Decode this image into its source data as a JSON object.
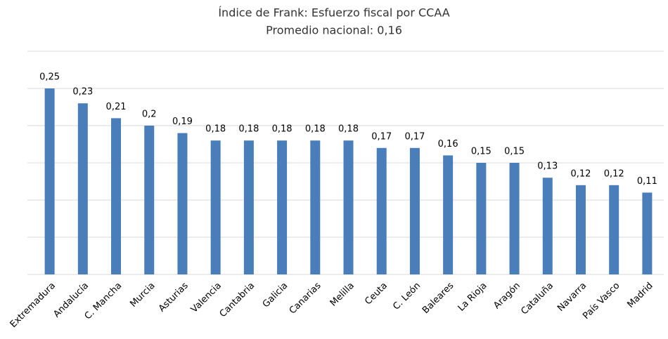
{
  "chart_data": {
    "type": "bar",
    "title": "Índice de Frank: Esfuerzo fiscal por CCAA",
    "subtitle": "Promedio nacional: 0,16",
    "categories": [
      "Extremadura",
      "Andalucía",
      "C. Mancha",
      "Murcia",
      "Asturias",
      "Valencia",
      "Cantabria",
      "Galicia",
      "Canarias",
      "Melilla",
      "Ceuta",
      "C. León",
      "Baleares",
      "La Rioja",
      "Aragón",
      "Cataluña",
      "Navarra",
      "País Vasco",
      "Madrid"
    ],
    "values": [
      0.25,
      0.23,
      0.21,
      0.2,
      0.19,
      0.18,
      0.18,
      0.18,
      0.18,
      0.18,
      0.17,
      0.17,
      0.16,
      0.15,
      0.15,
      0.13,
      0.12,
      0.12,
      0.11
    ],
    "value_labels": [
      "0,25",
      "0,23",
      "0,21",
      "0,2",
      "0,19",
      "0,18",
      "0,18",
      "0,18",
      "0,18",
      "0,18",
      "0,17",
      "0,17",
      "0,16",
      "0,15",
      "0,15",
      "0,13",
      "0,12",
      "0,12",
      "0,11"
    ],
    "color": "#4a7ebb",
    "ylim": [
      0,
      0.3
    ],
    "yticks": [
      0,
      0.05,
      0.1,
      0.15,
      0.2,
      0.25,
      0.3
    ],
    "grid": true
  }
}
